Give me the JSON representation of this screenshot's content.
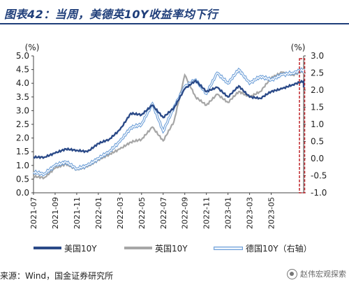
{
  "title": "图表42：当周，美德英10Y收益率均下行",
  "source": "来源：Wind，国金证券研究所",
  "watermark": "赵伟宏观探索",
  "colors": {
    "us": "#2b4a88",
    "uk": "#a6a6a6",
    "de_stroke": "#6fa0d8",
    "de_fill": "#dbe8f8",
    "highlight": "#c0252b"
  },
  "chart_data": {
    "type": "line",
    "left_axis": {
      "unit": "(%)",
      "min": 0.0,
      "max": 5.0,
      "ticks": [
        "0.0",
        "0.5",
        "1.0",
        "1.5",
        "2.0",
        "2.5",
        "3.0",
        "3.5",
        "4.0",
        "4.5",
        "5.0"
      ]
    },
    "right_axis": {
      "unit": "(%)",
      "min": -1.0,
      "max": 3.0,
      "ticks": [
        "-1.0",
        "-0.5",
        "0.0",
        "0.5",
        "1.0",
        "1.5",
        "2.0",
        "2.5",
        "3.0"
      ]
    },
    "x_ticks": [
      "2021-07",
      "2021-09",
      "2021-11",
      "2022-01",
      "2022-03",
      "2022-05",
      "2022-07",
      "2022-09",
      "2022-11",
      "2023-01",
      "2023-03",
      "2023-05"
    ],
    "x_range": [
      "2021-07",
      "2023-08"
    ],
    "highlight_box": {
      "x_from": "2023-07-20",
      "x_to": "2023-08-04"
    },
    "series": [
      {
        "name": "美国10Y",
        "axis": "left",
        "style": "solid",
        "points": [
          [
            "2021-07",
            1.3
          ],
          [
            "2021-08",
            1.3
          ],
          [
            "2021-09",
            1.45
          ],
          [
            "2021-10",
            1.6
          ],
          [
            "2021-11",
            1.55
          ],
          [
            "2021-12",
            1.5
          ],
          [
            "2022-01",
            1.8
          ],
          [
            "2022-02",
            1.95
          ],
          [
            "2022-03",
            2.3
          ],
          [
            "2022-04",
            2.9
          ],
          [
            "2022-05",
            2.85
          ],
          [
            "2022-06",
            3.2
          ],
          [
            "2022-07",
            2.75
          ],
          [
            "2022-08",
            3.1
          ],
          [
            "2022-09",
            3.8
          ],
          [
            "2022-10",
            4.1
          ],
          [
            "2022-11",
            3.7
          ],
          [
            "2022-12",
            3.85
          ],
          [
            "2023-01",
            3.5
          ],
          [
            "2023-02",
            3.9
          ],
          [
            "2023-03",
            3.5
          ],
          [
            "2023-04",
            3.45
          ],
          [
            "2023-05",
            3.7
          ],
          [
            "2023-06",
            3.8
          ],
          [
            "2023-07",
            3.95
          ],
          [
            "2023-08",
            4.08
          ],
          [
            "2023-08",
            3.85
          ]
        ]
      },
      {
        "name": "英国10Y",
        "axis": "left",
        "style": "solid",
        "points": [
          [
            "2021-07",
            0.6
          ],
          [
            "2021-08",
            0.55
          ],
          [
            "2021-09",
            0.9
          ],
          [
            "2021-10",
            1.05
          ],
          [
            "2021-11",
            0.85
          ],
          [
            "2021-12",
            0.95
          ],
          [
            "2022-01",
            1.2
          ],
          [
            "2022-02",
            1.4
          ],
          [
            "2022-03",
            1.6
          ],
          [
            "2022-04",
            1.85
          ],
          [
            "2022-05",
            1.95
          ],
          [
            "2022-06",
            2.4
          ],
          [
            "2022-07",
            1.9
          ],
          [
            "2022-08",
            2.6
          ],
          [
            "2022-09",
            4.3
          ],
          [
            "2022-10",
            3.5
          ],
          [
            "2022-11",
            3.2
          ],
          [
            "2022-12",
            3.6
          ],
          [
            "2023-01",
            3.3
          ],
          [
            "2023-02",
            3.7
          ],
          [
            "2023-03",
            3.5
          ],
          [
            "2023-04",
            3.7
          ],
          [
            "2023-05",
            4.2
          ],
          [
            "2023-06",
            4.4
          ],
          [
            "2023-07",
            4.3
          ],
          [
            "2023-08",
            4.45
          ],
          [
            "2023-08",
            4.35
          ]
        ]
      },
      {
        "name": "德国10Y（右轴）",
        "axis": "right",
        "style": "double",
        "points": [
          [
            "2021-07",
            -0.4
          ],
          [
            "2021-08",
            -0.45
          ],
          [
            "2021-09",
            -0.2
          ],
          [
            "2021-10",
            -0.1
          ],
          [
            "2021-11",
            -0.3
          ],
          [
            "2021-12",
            -0.2
          ],
          [
            "2022-01",
            0.0
          ],
          [
            "2022-02",
            0.2
          ],
          [
            "2022-03",
            0.5
          ],
          [
            "2022-04",
            0.9
          ],
          [
            "2022-05",
            1.0
          ],
          [
            "2022-06",
            1.6
          ],
          [
            "2022-07",
            0.8
          ],
          [
            "2022-08",
            1.5
          ],
          [
            "2022-09",
            2.1
          ],
          [
            "2022-10",
            2.3
          ],
          [
            "2022-11",
            1.9
          ],
          [
            "2022-12",
            2.5
          ],
          [
            "2023-01",
            2.2
          ],
          [
            "2023-02",
            2.6
          ],
          [
            "2023-03",
            2.2
          ],
          [
            "2023-04",
            2.4
          ],
          [
            "2023-05",
            2.3
          ],
          [
            "2023-06",
            2.45
          ],
          [
            "2023-07",
            2.5
          ],
          [
            "2023-08",
            2.6
          ],
          [
            "2023-08",
            2.5
          ]
        ]
      }
    ]
  }
}
